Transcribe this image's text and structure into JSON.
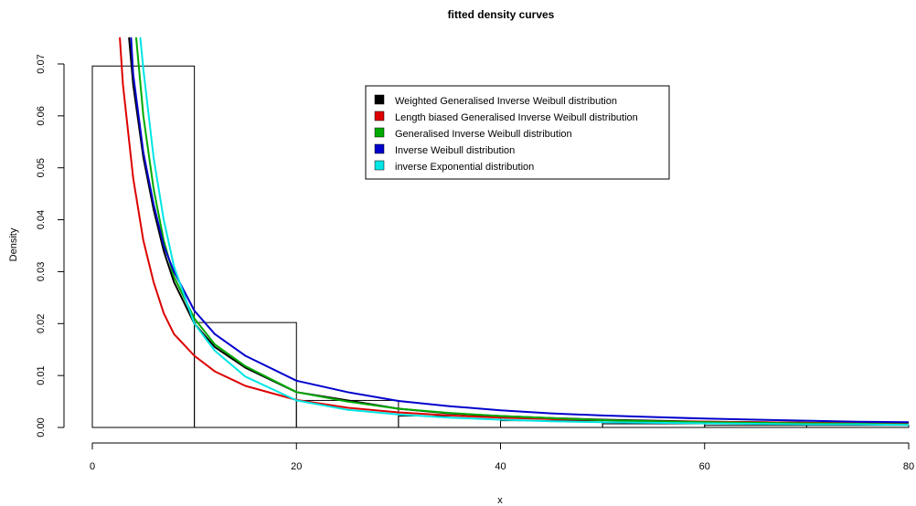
{
  "chart_data": {
    "type": "histogram-with-lines",
    "title": "fitted density curves",
    "xlabel": "x",
    "ylabel": "Density",
    "xlim": [
      0,
      80
    ],
    "ylim": [
      0,
      0.07
    ],
    "x_ticks": [
      "0",
      "20",
      "40",
      "60",
      "80"
    ],
    "x_tick_values": [
      0,
      20,
      40,
      60,
      80
    ],
    "y_ticks": [
      "0.00",
      "0.01",
      "0.02",
      "0.03",
      "0.04",
      "0.05",
      "0.06",
      "0.07"
    ],
    "y_tick_values": [
      0,
      0.01,
      0.02,
      0.03,
      0.04,
      0.05,
      0.06,
      0.07
    ],
    "grid": false,
    "legend_position": "top-right",
    "histogram": {
      "bin_edges": [
        0,
        10,
        20,
        30,
        40,
        50,
        60,
        70,
        80
      ],
      "densities": [
        0.0696,
        0.0202,
        0.0052,
        0.0022,
        0.0013,
        0.0007,
        0.0004,
        0.0004
      ]
    },
    "series": [
      {
        "name": "Weighted Generalised Inverse Weibull distribution",
        "color": "#000000",
        "x": [
          3.6,
          4,
          5,
          6,
          7,
          8,
          10,
          12,
          15,
          20,
          25,
          30,
          35,
          40,
          45,
          50,
          55,
          60,
          65,
          70,
          75,
          80
        ],
        "y": [
          0.075,
          0.066,
          0.052,
          0.042,
          0.034,
          0.028,
          0.02,
          0.0155,
          0.0115,
          0.0068,
          0.0052,
          0.0036,
          0.0027,
          0.0022,
          0.0018,
          0.0015,
          0.0013,
          0.0011,
          0.001,
          0.0009,
          0.0008,
          0.0008
        ]
      },
      {
        "name": "Length biased Generalised Inverse Weibull distribution",
        "color": "#dd0000",
        "x": [
          2.7,
          3,
          4,
          5,
          6,
          7,
          8,
          10,
          12,
          15,
          20,
          25,
          30,
          35,
          40,
          45,
          50,
          55,
          60,
          65,
          70,
          75,
          80
        ],
        "y": [
          0.075,
          0.066,
          0.048,
          0.036,
          0.028,
          0.022,
          0.018,
          0.0138,
          0.0108,
          0.008,
          0.0053,
          0.0038,
          0.0029,
          0.0023,
          0.0019,
          0.0016,
          0.0014,
          0.0012,
          0.0011,
          0.001,
          0.0009,
          0.0009,
          0.0008
        ]
      },
      {
        "name": "Generalised Inverse Weibull distribution",
        "color": "#00aa00",
        "x": [
          4.3,
          5,
          6,
          7,
          8,
          10,
          12,
          15,
          20,
          25,
          30,
          35,
          40,
          45,
          50,
          55,
          60,
          65,
          70,
          75,
          80
        ],
        "y": [
          0.075,
          0.06,
          0.046,
          0.036,
          0.029,
          0.021,
          0.016,
          0.0118,
          0.0068,
          0.005,
          0.0036,
          0.0028,
          0.0022,
          0.0018,
          0.0014,
          0.0012,
          0.001,
          0.0009,
          0.0008,
          0.0007,
          0.0006
        ]
      },
      {
        "name": "Inverse Weibull distribution",
        "color": "#0000cc",
        "x": [
          3.8,
          4,
          5,
          6,
          7,
          8,
          10,
          12,
          15,
          20,
          25,
          30,
          35,
          40,
          45,
          50,
          55,
          60,
          65,
          70,
          75,
          80
        ],
        "y": [
          0.075,
          0.068,
          0.053,
          0.043,
          0.035,
          0.03,
          0.0225,
          0.018,
          0.0138,
          0.009,
          0.0068,
          0.0051,
          0.0041,
          0.0033,
          0.0027,
          0.0023,
          0.002,
          0.0017,
          0.0015,
          0.0013,
          0.0011,
          0.001
        ]
      },
      {
        "name": "inverse Exponential  distribution",
        "color": "#00e5e5",
        "x": [
          4.7,
          5,
          6,
          7,
          8,
          10,
          12,
          15,
          20,
          25,
          30,
          35,
          40,
          45,
          50,
          55,
          60,
          65,
          70,
          75,
          80
        ],
        "y": [
          0.075,
          0.069,
          0.052,
          0.04,
          0.031,
          0.02,
          0.0148,
          0.0098,
          0.0052,
          0.0034,
          0.0025,
          0.0019,
          0.0015,
          0.0012,
          0.001,
          0.0009,
          0.0008,
          0.0007,
          0.0006,
          0.0006,
          0.0005
        ]
      }
    ]
  }
}
